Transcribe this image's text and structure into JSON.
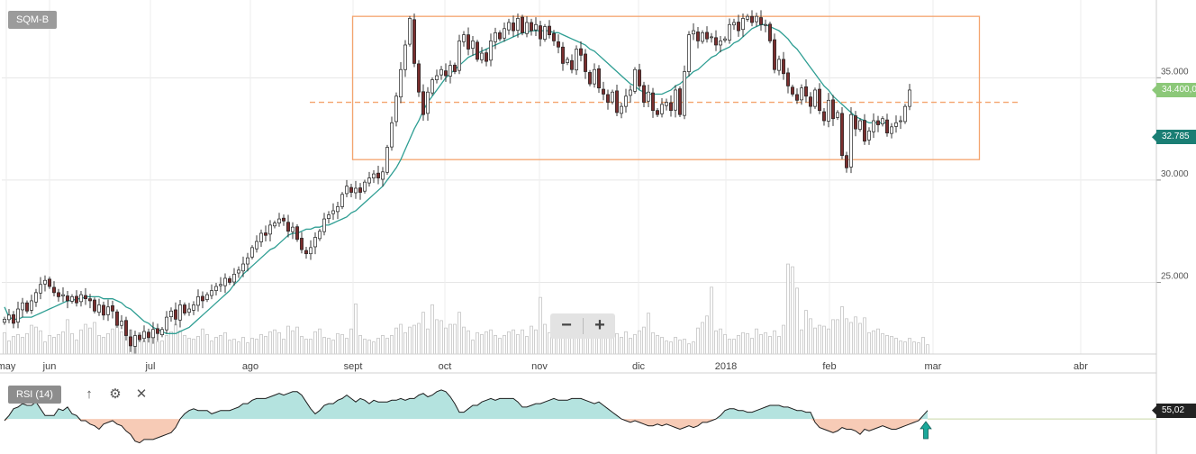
{
  "header": {
    "symbol": "SQM-B"
  },
  "rsi": {
    "label": "RSI (14)",
    "value_label": "55,02",
    "current_value": 55.02,
    "fill_colors": {
      "above": "#b4e3df",
      "below": "#f7cbb6"
    }
  },
  "toolbar": {
    "up_icon": "↑",
    "settings_icon": "⚙",
    "close_icon": "✕"
  },
  "zoom": {
    "minus": "−",
    "plus": "+"
  },
  "price_labels": {
    "last": "34.400,0",
    "moving_average": "32.785"
  },
  "colors": {
    "up_candle": "#ffffff",
    "down_candle": "#7a2e2e",
    "moving_average": "#2e9e93",
    "range_box": "#f4a46e",
    "last_price_tag": "#8cc879",
    "ma_tag": "#1a7e74",
    "rsi_tag": "#222222"
  },
  "chart_data": [
    {
      "type": "candlestick",
      "title": "",
      "y_axis": {
        "ylim": [
          21500,
          38800
        ],
        "ticks": [
          25000,
          30000,
          35000
        ],
        "tick_labels": [
          "25.000",
          "30.000",
          "35.000"
        ]
      },
      "x_axis": {
        "labels": [
          "may",
          "jun",
          "jul",
          "ago",
          "sept",
          "oct",
          "nov",
          "dic",
          "2018",
          "feb",
          "mar",
          "abr"
        ]
      },
      "close_series": [
        23200,
        23400,
        23000,
        23700,
        24000,
        23600,
        24100,
        24500,
        24900,
        25100,
        24800,
        24500,
        24300,
        24400,
        24100,
        24300,
        24000,
        24400,
        24200,
        24100,
        23600,
        23900,
        23400,
        23800,
        23600,
        22900,
        23100,
        22400,
        21900,
        22400,
        22200,
        22600,
        22300,
        22700,
        22500,
        22700,
        23300,
        23600,
        23200,
        23900,
        23500,
        23700,
        23900,
        24300,
        24100,
        24400,
        24600,
        24800,
        24900,
        25200,
        25000,
        25400,
        25600,
        25900,
        26200,
        26700,
        27000,
        27400,
        27300,
        27800,
        27900,
        28100,
        28000,
        27500,
        27700,
        27100,
        26600,
        26400,
        26700,
        27200,
        27500,
        28100,
        28300,
        28500,
        28700,
        29300,
        29700,
        29400,
        29600,
        29400,
        29900,
        30100,
        30300,
        30100,
        30400,
        31600,
        32800,
        34100,
        35400,
        36600,
        37900,
        35700,
        34300,
        33200,
        34300,
        34900,
        35100,
        35400,
        35100,
        35600,
        35300,
        36800,
        37100,
        36400,
        36800,
        35900,
        36200,
        35800,
        36800,
        37200,
        36900,
        37400,
        37700,
        37300,
        37900,
        37200,
        37700,
        37300,
        37600,
        36900,
        37500,
        37100,
        36800,
        36500,
        35700,
        35900,
        35400,
        36400,
        36100,
        35300,
        34700,
        35400,
        34500,
        34200,
        33800,
        34300,
        33300,
        33600,
        34100,
        34400,
        35400,
        34600,
        33800,
        34300,
        33400,
        33200,
        33700,
        33800,
        33400,
        34400,
        33200,
        35300,
        37100,
        37300,
        36800,
        37200,
        36900,
        37000,
        36600,
        36800,
        36900,
        37600,
        37700,
        37300,
        37900,
        38000,
        37700,
        38000,
        37600,
        37600,
        36800,
        35400,
        35900,
        35200,
        34600,
        34200,
        33900,
        34500,
        34100,
        33600,
        34400,
        33400,
        32900,
        33900,
        33000,
        33300,
        31200,
        30600,
        33200,
        32500,
        32900,
        31900,
        32400,
        32900,
        32700,
        33000,
        32300,
        32600,
        32800,
        32900,
        33600,
        34400
      ],
      "volume_ylim": [
        0,
        10000000
      ],
      "volume": [
        2300000,
        1400000,
        1900000,
        2100000,
        1800000,
        2200000,
        3100000,
        2900000,
        2500000,
        1300000,
        2000000,
        1800000,
        2100000,
        2400000,
        3700000,
        2200000,
        1500000,
        2600000,
        3200000,
        2800000,
        3400000,
        2000000,
        1800000,
        2200000,
        2700000,
        3100000,
        2400000,
        3500000,
        2600000,
        1600000,
        2300000,
        1400000,
        2400000,
        1900000,
        1300000,
        1400000,
        2000000,
        2400000,
        3200000,
        2500000,
        2000000,
        1700000,
        1600000,
        1900000,
        2700000,
        2100000,
        1400000,
        1800000,
        2000000,
        2300000,
        1500000,
        1600000,
        1300000,
        1800000,
        1200000,
        1700000,
        1600000,
        2100000,
        1900000,
        2400000,
        2600000,
        2300000,
        1600000,
        3000000,
        2500000,
        2900000,
        1900000,
        1600000,
        1600000,
        2400000,
        2700000,
        1800000,
        1700000,
        1500000,
        2200000,
        2100000,
        1700000,
        2700000,
        5400000,
        2000000,
        1600000,
        1500000,
        1300000,
        1700000,
        2000000,
        1700000,
        2000000,
        2800000,
        3200000,
        2300000,
        2900000,
        3100000,
        3300000,
        4500000,
        2700000,
        5300000,
        3700000,
        3600000,
        2800000,
        3200000,
        3200000,
        4500000,
        2900000,
        2500000,
        1500000,
        2300000,
        2100000,
        2400000,
        2600000,
        2000000,
        1700000,
        2000000,
        2400000,
        2600000,
        2100000,
        2600000,
        1900000,
        3000000,
        2600000,
        6100000,
        3200000,
        2300000,
        2800000,
        2000000,
        1900000,
        3900000,
        4300000,
        2500000,
        2800000,
        1800000,
        2800000,
        2600000,
        2300000,
        2500000,
        2600000,
        2200000,
        2200000,
        1800000,
        2400000,
        1700000,
        2100000,
        2500000,
        2900000,
        4400000,
        2300000,
        2000000,
        1800000,
        1400000,
        1300000,
        1800000,
        1500000,
        1600000,
        1100000,
        1300000,
        2800000,
        3400000,
        4100000,
        7200000,
        2500000,
        2700000,
        2100000,
        1600000,
        1600000,
        2000000,
        2300000,
        2200000,
        1700000,
        2700000,
        2100000,
        2300000,
        1900000,
        2500000,
        1900000,
        3100000,
        9700000,
        9400000,
        7100000,
        2600000,
        4700000,
        3800000,
        2800000,
        3100000,
        3000000,
        2700000,
        3700000,
        3700000,
        5100000,
        3800000,
        3400000,
        4000000,
        3300000,
        3900000,
        2300000,
        2500000,
        2700000,
        2200000,
        2000000,
        1900000,
        1700000,
        1400000,
        1300000,
        1700000,
        1300000,
        1200000,
        1800000,
        1000000
      ],
      "moving_average": [
        23800,
        23300,
        23200,
        23200,
        23300,
        23300,
        23300,
        23400,
        23500,
        23600,
        23700,
        23800,
        23900,
        24000,
        24100,
        24100,
        24200,
        24200,
        24300,
        24300,
        24300,
        24300,
        24200,
        24200,
        24200,
        24100,
        24000,
        23800,
        23700,
        23500,
        23300,
        23100,
        23000,
        22800,
        22700,
        22600,
        22500,
        22500,
        22500,
        22600,
        22700,
        22800,
        23000,
        23200,
        23400,
        23600,
        23800,
        24000,
        24200,
        24400,
        24600,
        24900,
        25100,
        25400,
        25600,
        25800,
        26000,
        26200,
        26400,
        26600,
        26700,
        26900,
        27100,
        27300,
        27400,
        27400,
        27500,
        27600,
        27600,
        27700,
        27700,
        27800,
        27800,
        27900,
        28000,
        28100,
        28200,
        28400,
        28500,
        28700,
        28900,
        29100,
        29300,
        29500,
        29700,
        30000,
        30300,
        30600,
        31000,
        31500,
        32000,
        32500,
        32900,
        33400,
        33800,
        34100,
        34400,
        34700,
        35000,
        35200,
        35400,
        35600,
        35800,
        36000,
        36100,
        36200,
        36300,
        36400,
        36500,
        36600,
        36700,
        36800,
        36900,
        37000,
        37100,
        37200,
        37200,
        37300,
        37300,
        37300,
        37300,
        37300,
        37200,
        37200,
        37100,
        37000,
        36900,
        36800,
        36700,
        36600,
        36400,
        36300,
        36100,
        35900,
        35700,
        35500,
        35300,
        35100,
        34900,
        34700,
        34600,
        34400,
        34300,
        34200,
        34200,
        34200,
        34200,
        34300,
        34400,
        34600,
        34700,
        34900,
        35100,
        35300,
        35400,
        35600,
        35800,
        36000,
        36100,
        36300,
        36400,
        36500,
        36700,
        36800,
        37000,
        37200,
        37400,
        37500,
        37600,
        37600,
        37500,
        37400,
        37300,
        37100,
        36900,
        36600,
        36400,
        36100,
        35800,
        35500,
        35200,
        34900,
        34600,
        34400,
        34100,
        33900,
        33700,
        33500,
        33300,
        33100,
        33000,
        32900,
        32800,
        32800,
        32800,
        32800,
        32800
      ]
    },
    {
      "type": "line",
      "title": "RSI (14)",
      "ylim": [
        30,
        77
      ],
      "midline": 50,
      "values": [
        49,
        52,
        56,
        57,
        59,
        58,
        58,
        60,
        56,
        52,
        52,
        52,
        56,
        55,
        57,
        53,
        52,
        49,
        49,
        47,
        46,
        44,
        47,
        48,
        49,
        47,
        46,
        43,
        41,
        37,
        36,
        38,
        38,
        38,
        39,
        40,
        41,
        42,
        45,
        50,
        53,
        55,
        56,
        55,
        55,
        55,
        53,
        54,
        55,
        55,
        55,
        56,
        57,
        59,
        59,
        61,
        62,
        62,
        62,
        63,
        64,
        65,
        64,
        65,
        66,
        66,
        64,
        60,
        56,
        53,
        55,
        58,
        59,
        59,
        61,
        62,
        64,
        62,
        60,
        62,
        61,
        59,
        61,
        60,
        60,
        60,
        61,
        61,
        62,
        61,
        62,
        62,
        64,
        65,
        63,
        64,
        66,
        67,
        66,
        63,
        59,
        54,
        54,
        56,
        58,
        58,
        60,
        61,
        62,
        61,
        62,
        62,
        62,
        62,
        60,
        57,
        57,
        58,
        59,
        59,
        60,
        61,
        62,
        61,
        61,
        61,
        62,
        62,
        62,
        61,
        60,
        59,
        60,
        58,
        56,
        54,
        52,
        50,
        49,
        48,
        49,
        48,
        47,
        46,
        46,
        47,
        46,
        47,
        46,
        45,
        44,
        45,
        46,
        45,
        46,
        48,
        48,
        49,
        50,
        52,
        55,
        56,
        56,
        55,
        55,
        54,
        54,
        55,
        56,
        57,
        58,
        58,
        58,
        57,
        57,
        56,
        55,
        55,
        54,
        54,
        48,
        45,
        44,
        43,
        42,
        43,
        45,
        44,
        44,
        43,
        41,
        44,
        43,
        44,
        45,
        46,
        45,
        44,
        44,
        45,
        46,
        47,
        48,
        49,
        52,
        55
      ]
    }
  ]
}
